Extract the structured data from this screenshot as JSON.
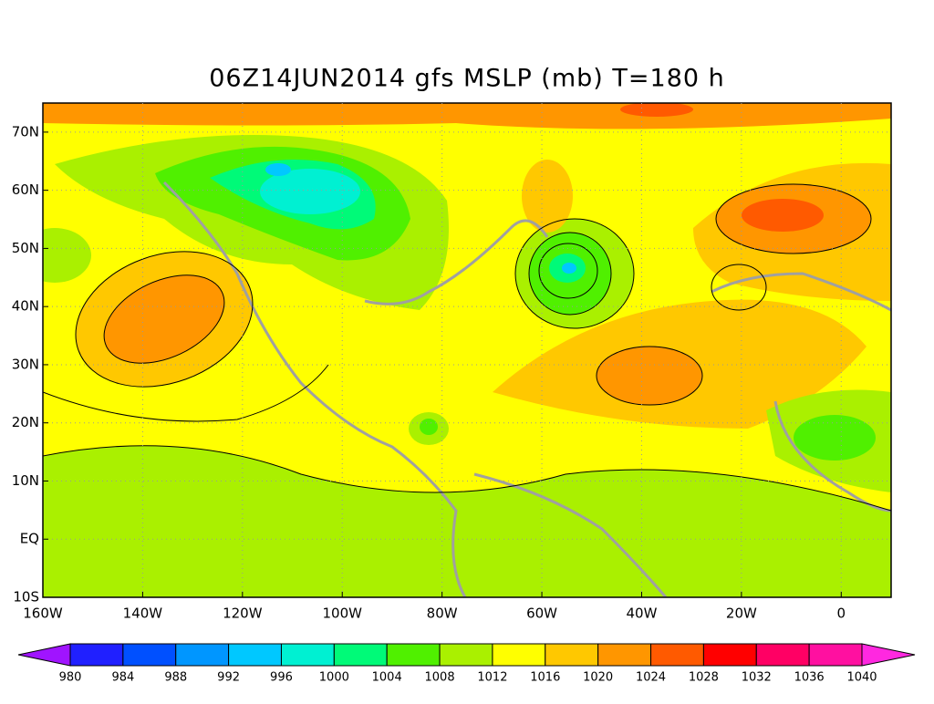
{
  "map": {
    "title": "06Z14JUN2014 gfs MSLP (mb) T=180 h",
    "xlim": [
      -160,
      10
    ],
    "ylim": [
      -10,
      75
    ],
    "xticks": [
      {
        "value": -160,
        "label": "160W"
      },
      {
        "value": -140,
        "label": "140W"
      },
      {
        "value": -120,
        "label": "120W"
      },
      {
        "value": -100,
        "label": "100W"
      },
      {
        "value": -80,
        "label": "80W"
      },
      {
        "value": -60,
        "label": "60W"
      },
      {
        "value": -40,
        "label": "40W"
      },
      {
        "value": -20,
        "label": "20W"
      },
      0
    ],
    "yticks": [
      {
        "value": -10,
        "label": "10S"
      },
      {
        "value": 0,
        "label": "EQ"
      },
      {
        "value": 10,
        "label": "10N"
      },
      {
        "value": 20,
        "label": "20N"
      },
      {
        "value": 30,
        "label": "30N"
      },
      {
        "value": 40,
        "label": "40N"
      },
      {
        "value": 50,
        "label": "50N"
      },
      {
        "value": 60,
        "label": "60N"
      },
      {
        "value": 70,
        "label": "70N"
      }
    ],
    "grid": true,
    "colorbar": {
      "levels": [
        980,
        984,
        988,
        992,
        996,
        1000,
        1004,
        1008,
        1012,
        1016,
        1020,
        1024,
        1028,
        1032,
        1036,
        1040
      ],
      "colors": [
        "#a014ff",
        "#2020ff",
        "#0050ff",
        "#0096ff",
        "#00c8ff",
        "#00f0d2",
        "#00fa78",
        "#50f000",
        "#aaf000",
        "#ffff00",
        "#ffc800",
        "#ff9600",
        "#ff5a00",
        "#ff0000",
        "#ff0064",
        "#ff10a0",
        "#ff28e0"
      ]
    }
  }
}
